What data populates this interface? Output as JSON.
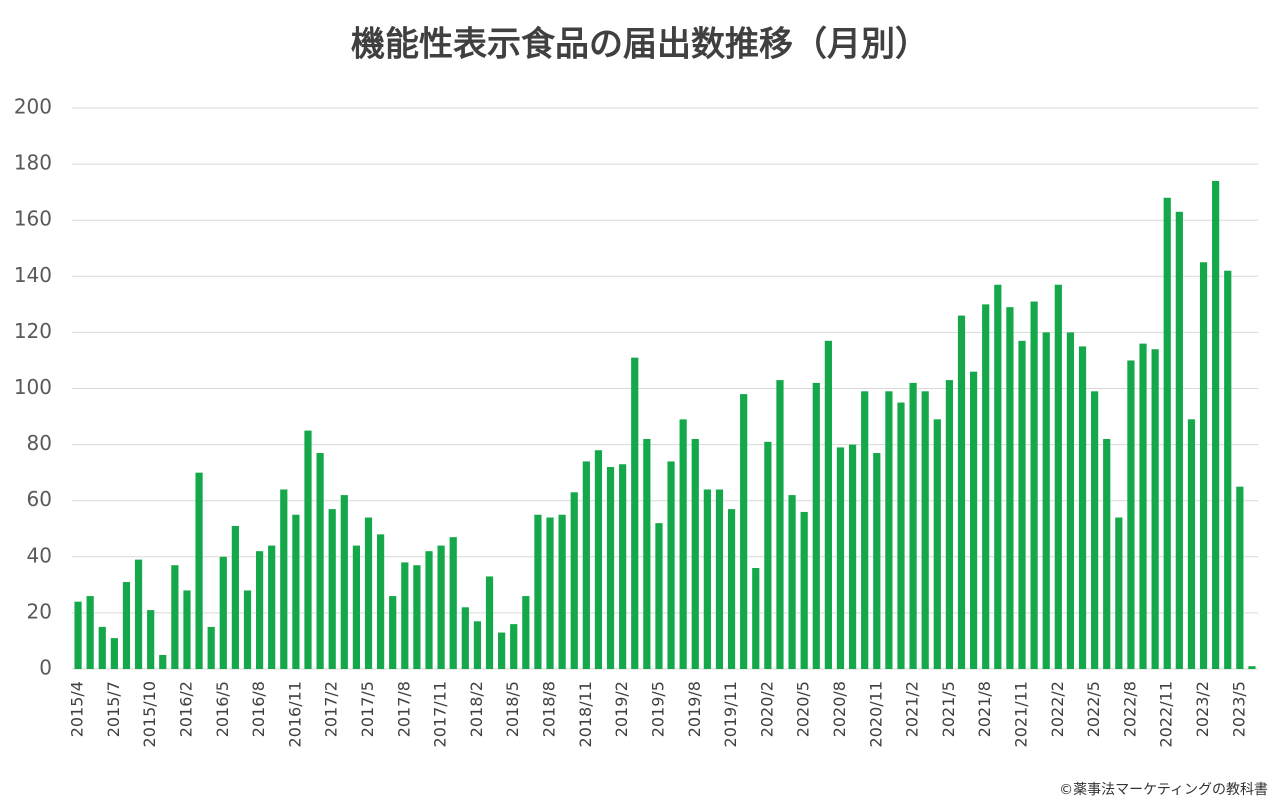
{
  "chart_data": {
    "type": "bar",
    "title": "機能性表示食品の届出数推移（月別）",
    "footnote": "©薬事法マーケティングの教科書",
    "categories": [
      "2015/4",
      null,
      null,
      "2015/7",
      null,
      null,
      "2015/10",
      null,
      null,
      "2016/2",
      null,
      null,
      "2016/5",
      null,
      null,
      "2016/8",
      null,
      null,
      "2016/11",
      null,
      null,
      "2017/2",
      null,
      null,
      "2017/5",
      null,
      null,
      "2017/8",
      null,
      null,
      "2017/11",
      null,
      null,
      "2018/2",
      null,
      null,
      "2018/5",
      null,
      null,
      "2018/8",
      null,
      null,
      "2018/11",
      null,
      null,
      "2019/2",
      null,
      null,
      "2019/5",
      null,
      null,
      "2019/8",
      null,
      null,
      "2019/11",
      null,
      null,
      "2020/2",
      null,
      null,
      "2020/5",
      null,
      null,
      "2020/8",
      null,
      null,
      "2020/11",
      null,
      null,
      "2021/2",
      null,
      null,
      "2021/5",
      null,
      null,
      "2021/8",
      null,
      null,
      "2021/11",
      null,
      null,
      "2022/2",
      null,
      null,
      "2022/5",
      null,
      null,
      "2022/8",
      null,
      null,
      "2022/11",
      null,
      null,
      "2023/2",
      null,
      null,
      "2023/5",
      null
    ],
    "values": [
      24,
      26,
      15,
      11,
      31,
      39,
      21,
      5,
      37,
      28,
      70,
      15,
      40,
      51,
      28,
      42,
      44,
      64,
      55,
      85,
      77,
      57,
      62,
      44,
      54,
      48,
      26,
      38,
      37,
      42,
      44,
      47,
      22,
      17,
      33,
      13,
      16,
      26,
      55,
      54,
      55,
      63,
      74,
      78,
      72,
      73,
      111,
      82,
      52,
      74,
      89,
      82,
      64,
      64,
      57,
      98,
      36,
      81,
      103,
      62,
      56,
      102,
      117,
      79,
      80,
      99,
      77,
      99,
      95,
      102,
      99,
      89,
      103,
      126,
      106,
      130,
      137,
      129,
      117,
      131,
      120,
      137,
      120,
      115,
      99,
      82,
      54,
      110,
      116,
      114,
      168,
      163,
      89,
      145,
      174,
      142,
      65,
      1
    ],
    "color": "#14a84a",
    "ylim": [
      0,
      200
    ],
    "yticks": [
      0,
      20,
      40,
      60,
      80,
      100,
      120,
      140,
      160,
      180,
      200
    ],
    "grid": true
  }
}
